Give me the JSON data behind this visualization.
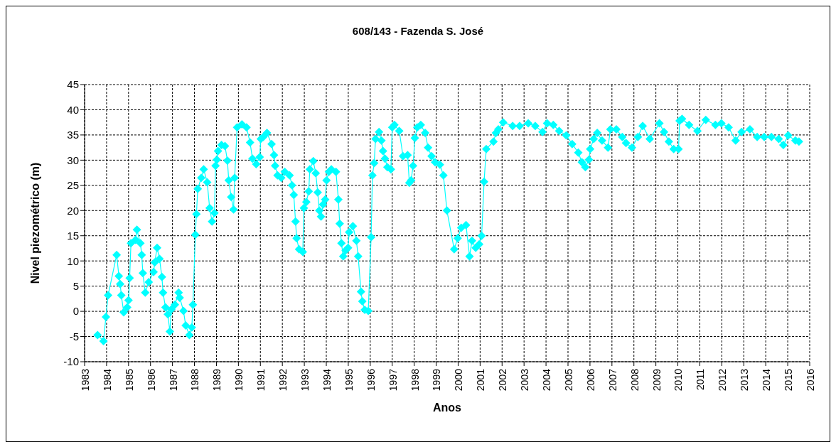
{
  "chart_data": {
    "type": "line",
    "title": "608/143 - Fazenda S. José",
    "xlabel": "Anos",
    "ylabel": "Nivel piezométrico (m)",
    "x": [
      1983.59,
      1983.86,
      1983.97,
      1984.07,
      1984.46,
      1984.56,
      1984.62,
      1984.67,
      1984.78,
      1984.94,
      1985.0,
      1985.05,
      1985.11,
      1985.32,
      1985.38,
      1985.54,
      1985.6,
      1985.65,
      1985.76,
      1985.92,
      1986.14,
      1986.19,
      1986.3,
      1986.41,
      1986.52,
      1986.57,
      1986.68,
      1986.79,
      1986.88,
      1986.95,
      1987.11,
      1987.28,
      1987.33,
      1987.5,
      1987.6,
      1987.77,
      1987.88,
      1987.93,
      1988.04,
      1988.09,
      1988.15,
      1988.31,
      1988.42,
      1988.58,
      1988.69,
      1988.8,
      1988.91,
      1988.96,
      1989.02,
      1989.07,
      1989.23,
      1989.39,
      1989.5,
      1989.56,
      1989.67,
      1989.78,
      1989.83,
      1989.94,
      1990.16,
      1990.37,
      1990.53,
      1990.64,
      1990.81,
      1990.97,
      1991.02,
      1991.13,
      1991.3,
      1991.51,
      1991.62,
      1991.67,
      1991.78,
      1991.95,
      1992.11,
      1992.33,
      1992.44,
      1992.52,
      1992.6,
      1992.65,
      1992.76,
      1992.93,
      1992.98,
      1993.09,
      1993.2,
      1993.25,
      1993.41,
      1993.52,
      1993.61,
      1993.68,
      1993.76,
      1993.85,
      1993.95,
      1994.01,
      1994.12,
      1994.23,
      1994.44,
      1994.55,
      1994.61,
      1994.69,
      1994.77,
      1994.88,
      1994.99,
      1995.04,
      1995.21,
      1995.37,
      1995.45,
      1995.58,
      1995.64,
      1995.75,
      1995.91,
      1996.04,
      1996.1,
      1996.18,
      1996.24,
      1996.4,
      1996.51,
      1996.58,
      1996.67,
      1996.78,
      1996.94,
      1997.0,
      1997.1,
      1997.32,
      1997.49,
      1997.7,
      1997.78,
      1997.86,
      1997.95,
      1998.03,
      1998.14,
      1998.3,
      1998.5,
      1998.63,
      1998.79,
      1998.95,
      1999.17,
      1999.33,
      1999.49,
      1999.82,
      1999.98,
      2000.14,
      2000.36,
      2000.52,
      2000.63,
      2000.8,
      2000.96,
      2001.07,
      2001.18,
      2001.28,
      2001.61,
      2001.72,
      2001.83,
      2002.05,
      2002.48,
      2002.8,
      2003.19,
      2003.51,
      2003.84,
      2004.05,
      2004.33,
      2004.6,
      2004.92,
      2005.19,
      2005.47,
      2005.63,
      2005.79,
      2005.95,
      2006.01,
      2006.17,
      2006.33,
      2006.55,
      2006.82,
      2006.93,
      2007.2,
      2007.47,
      2007.64,
      2007.91,
      2008.18,
      2008.4,
      2008.72,
      2009.16,
      2009.37,
      2009.59,
      2009.81,
      2010.03,
      2010.08,
      2010.19,
      2010.51,
      2010.89,
      2011.27,
      2011.71,
      2011.98,
      2012.31,
      2012.63,
      2012.9,
      2013.28,
      2013.61,
      2013.93,
      2014.26,
      2014.59,
      2014.8,
      2015.02,
      2015.35,
      2015.51
    ],
    "series": [
      {
        "color": "#00ffff",
        "values": [
          -4.7,
          -5.9,
          -1.1,
          3.2,
          11.2,
          7.0,
          5.4,
          3.2,
          -0.2,
          0.8,
          2.2,
          6.6,
          13.5,
          14.2,
          16.2,
          13.5,
          11.2,
          7.6,
          3.7,
          5.8,
          7.8,
          9.7,
          12.6,
          10.4,
          6.8,
          3.7,
          0.8,
          -0.6,
          -4.0,
          0.4,
          1.3,
          3.7,
          2.7,
          0.1,
          -2.8,
          -4.7,
          -3.2,
          1.3,
          15.2,
          19.3,
          24.3,
          26.5,
          28.2,
          25.6,
          20.5,
          17.8,
          19.5,
          28.9,
          30.1,
          31.8,
          33.0,
          32.8,
          29.9,
          26.0,
          22.7,
          20.2,
          26.5,
          36.5,
          37.1,
          36.5,
          33.5,
          30.3,
          29.2,
          30.6,
          34.2,
          34.6,
          35.4,
          33.2,
          31.0,
          28.9,
          27.0,
          26.5,
          27.7,
          27.0,
          25.0,
          23.1,
          17.8,
          14.5,
          12.3,
          11.8,
          20.5,
          21.7,
          23.8,
          28.2,
          29.8,
          27.4,
          23.6,
          20.0,
          18.8,
          21.2,
          22.2,
          26.0,
          27.7,
          28.2,
          27.7,
          22.2,
          17.4,
          13.5,
          10.9,
          12.1,
          12.6,
          15.7,
          16.9,
          14.0,
          10.9,
          3.9,
          2.0,
          0.3,
          0.1,
          14.7,
          27.0,
          29.4,
          34.2,
          35.6,
          33.9,
          31.8,
          30.3,
          28.6,
          28.2,
          36.5,
          37.0,
          35.8,
          30.8,
          31.0,
          25.5,
          26.0,
          28.9,
          34.4,
          36.5,
          37.0,
          35.4,
          32.5,
          30.8,
          29.6,
          29.1,
          27.0,
          20.0,
          12.3,
          14.5,
          16.6,
          17.1,
          10.9,
          14.0,
          12.6,
          13.3,
          15.0,
          25.7,
          32.2,
          33.7,
          35.4,
          36.1,
          37.5,
          36.8,
          36.8,
          37.3,
          36.8,
          35.6,
          37.3,
          37.0,
          35.8,
          34.9,
          33.2,
          31.5,
          29.6,
          28.6,
          30.1,
          32.2,
          34.2,
          35.4,
          33.9,
          32.5,
          36.1,
          36.1,
          34.6,
          33.4,
          32.5,
          34.6,
          36.8,
          34.2,
          37.3,
          35.6,
          33.7,
          32.2,
          32.2,
          37.8,
          38.2,
          37.0,
          35.8,
          38.0,
          37.0,
          37.3,
          36.5,
          33.9,
          35.6,
          36.1,
          34.6,
          34.6,
          34.6,
          34.2,
          33.0,
          34.9,
          33.9,
          33.7
        ]
      }
    ],
    "xlim": [
      1983,
      2016
    ],
    "xticks": [
      1983,
      1984,
      1985,
      1986,
      1987,
      1988,
      1989,
      1990,
      1991,
      1992,
      1993,
      1994,
      1995,
      1996,
      1997,
      1998,
      1999,
      2000,
      2001,
      2002,
      2003,
      2004,
      2005,
      2006,
      2007,
      2008,
      2009,
      2010,
      2011,
      2012,
      2013,
      2014,
      2015,
      2016
    ],
    "ylim": [
      -10,
      45
    ],
    "yticks": [
      -10,
      -5,
      0,
      5,
      10,
      15,
      20,
      25,
      30,
      35,
      40,
      45
    ],
    "grid": true,
    "legend": false,
    "marker": "diamond",
    "line_style": "solid"
  }
}
